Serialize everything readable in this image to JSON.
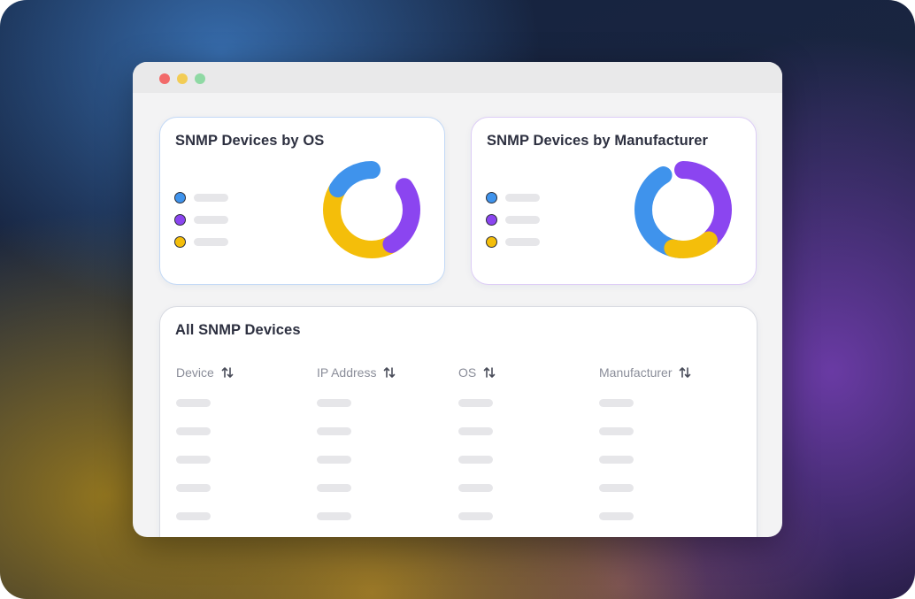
{
  "colors": {
    "blue": "#3f93ec",
    "purple": "#8b45f0",
    "yellow": "#f4be0a",
    "traffic_red": "#f26a6a",
    "traffic_yellow": "#f2cc55",
    "traffic_green": "#8fd9a4"
  },
  "os_card": {
    "title": "SNMP Devices by OS",
    "legend": [
      {
        "color_name": "blue",
        "icon": "blue-legend-dot"
      },
      {
        "color_name": "purple",
        "icon": "purple-legend-dot"
      },
      {
        "color_name": "yellow",
        "icon": "yellow-legend-dot"
      }
    ]
  },
  "manufacturer_card": {
    "title": "SNMP Devices by Manufacturer",
    "legend": [
      {
        "color_name": "blue",
        "icon": "blue-legend-dot"
      },
      {
        "color_name": "purple",
        "icon": "purple-legend-dot"
      },
      {
        "color_name": "yellow",
        "icon": "yellow-legend-dot"
      }
    ]
  },
  "table": {
    "title": "All SNMP Devices",
    "columns": [
      "Device",
      "IP Address",
      "OS",
      "Manufacturer"
    ],
    "sort_icon": "sort-arrows-icon",
    "row_count": 5
  }
}
